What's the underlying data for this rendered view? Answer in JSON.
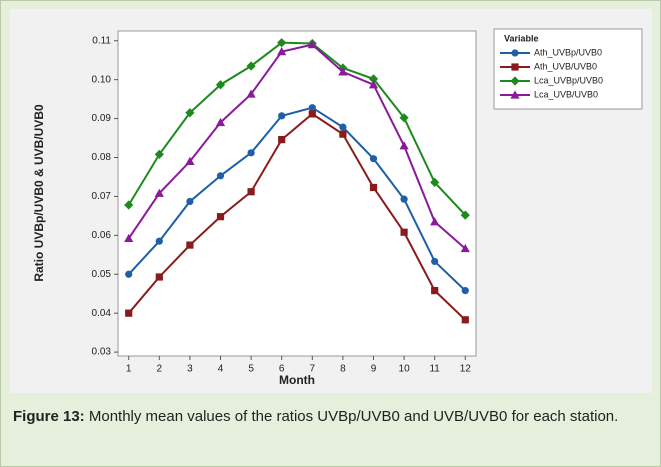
{
  "chart_data": {
    "type": "line",
    "x_label": "Month",
    "y_label": "Ratio UVBp/UVB0 & UVB/UVB0",
    "legend_title": "Variable",
    "legend": "top-right-outside",
    "x": [
      1,
      2,
      3,
      4,
      5,
      6,
      7,
      8,
      9,
      10,
      11,
      12
    ],
    "xlim": [
      0.65,
      12.35
    ],
    "xticks": [
      1,
      2,
      3,
      4,
      5,
      6,
      7,
      8,
      9,
      10,
      11,
      12
    ],
    "ylim": [
      0.029,
      0.1125
    ],
    "yticks": [
      0.03,
      0.04,
      0.05,
      0.06,
      0.07,
      0.08,
      0.09,
      {
        "value": 0.1,
        "label": "0.10"
      },
      0.11
    ],
    "series": [
      {
        "name": "Ath_UVBp/UVB0",
        "color": "#1f5fa8",
        "marker": "circle",
        "values": [
          0.05,
          0.0585,
          0.0687,
          0.0753,
          0.0812,
          0.0907,
          0.0928,
          0.0878,
          0.0797,
          0.0693,
          0.0533,
          0.0458
        ]
      },
      {
        "name": "Ath_UVB/UVB0",
        "color": "#8b1a1a",
        "marker": "square",
        "values": [
          0.04,
          0.0493,
          0.0575,
          0.0648,
          0.0712,
          0.0846,
          0.0912,
          0.086,
          0.0723,
          0.0608,
          0.0458,
          0.0383
        ]
      },
      {
        "name": "Lca_UVBp/UVB0",
        "color": "#1e8a1e",
        "marker": "diamond",
        "values": [
          0.0678,
          0.0808,
          0.0915,
          0.0987,
          0.1035,
          0.1095,
          0.1093,
          0.103,
          0.1002,
          0.0902,
          0.0736,
          0.0652
        ]
      },
      {
        "name": "Lca_UVB/UVB0",
        "color": "#8b1a9b",
        "marker": "triangle",
        "values": [
          0.0592,
          0.0708,
          0.079,
          0.089,
          0.0963,
          0.1072,
          0.109,
          0.102,
          0.0987,
          0.083,
          0.0635,
          0.0566
        ]
      }
    ],
    "caption_label": "Figure 13:",
    "caption": "Monthly mean values of the ratios UVBp/UVB0 and UVB/UVB0 for each station."
  }
}
